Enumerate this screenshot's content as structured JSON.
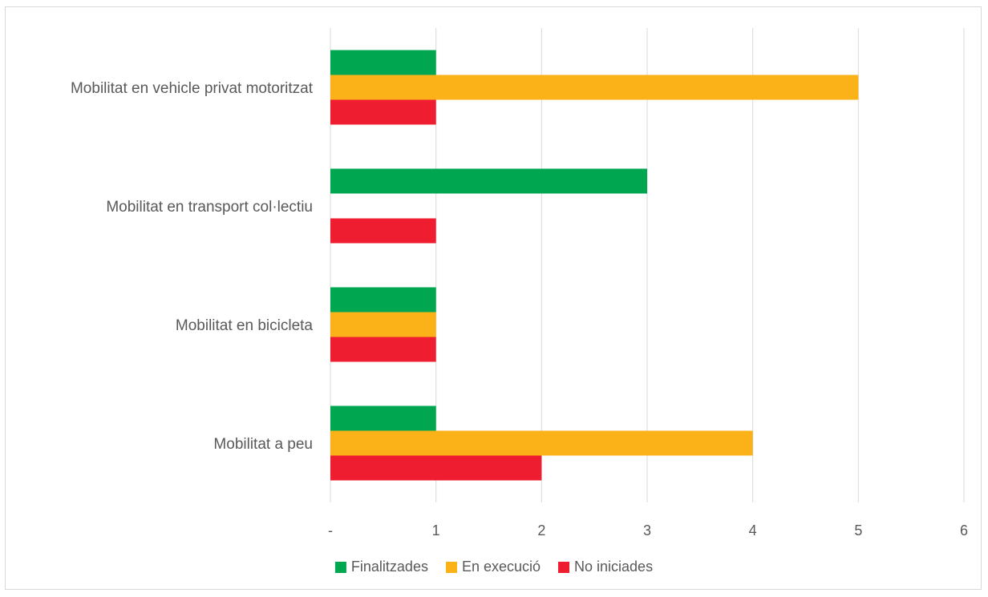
{
  "chart_data": {
    "type": "bar",
    "orientation": "horizontal",
    "title": "",
    "xlabel": "",
    "ylabel": "",
    "categories": [
      "Mobilitat en vehicle privat motoritzat",
      "Mobilitat en transport col·lectiu",
      "Mobilitat en bicicleta",
      "Mobilitat a peu"
    ],
    "series": [
      {
        "name": "Finalitzades",
        "color": "#00a650",
        "values": [
          1,
          3,
          1,
          1
        ]
      },
      {
        "name": "En execució",
        "color": "#fbb118",
        "values": [
          5,
          0,
          1,
          4
        ]
      },
      {
        "name": "No iniciades",
        "color": "#ee1d2f",
        "values": [
          1,
          1,
          1,
          2
        ]
      }
    ],
    "xlim": [
      0,
      6
    ],
    "x_ticks": [
      0,
      1,
      2,
      3,
      4,
      5,
      6
    ],
    "x_tick_labels": [
      "-",
      "1",
      "2",
      "3",
      "4",
      "5",
      "6"
    ],
    "grid": "vertical",
    "legend_position": "bottom"
  }
}
